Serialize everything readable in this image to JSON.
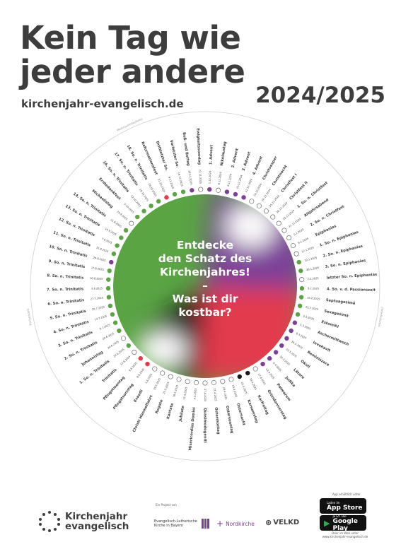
{
  "header": {
    "title_line1": "Kein Tag wie",
    "title_line2": "jeder andere",
    "url": "kirchenjahr-evangelisch.de",
    "year": "2024/2025"
  },
  "center": {
    "line1": "Entdecke",
    "line2": "den Schatz des",
    "line3": "Kirchenjahres!",
    "dash": "–",
    "line4": "Was ist dir",
    "line5": "kostbar?"
  },
  "season_labels": [
    {
      "text": "Weihnachtsfestkreis"
    },
    {
      "text": "Osterfestkreis"
    },
    {
      "text": "Trinitatiszeit"
    }
  ],
  "colors": {
    "purple": "#7b3f98",
    "green": "#5aa444",
    "white": "#ffffff",
    "red": "#e23b4e",
    "black": "#1a1a1a",
    "text": "#3d3d3d"
  },
  "days": [
    {
      "name": "1. Advent",
      "date": "1.12.2024",
      "color": "purple"
    },
    {
      "name": "Nikolaustag",
      "date": "6.12.2024",
      "color": "white"
    },
    {
      "name": "2. Advent",
      "date": "8.12.2024",
      "color": "purple"
    },
    {
      "name": "3. Advent",
      "date": "15.12.2024",
      "color": "purple"
    },
    {
      "name": "4. Advent",
      "date": "22.12.2024",
      "color": "purple"
    },
    {
      "name": "Christvesper",
      "date": "24.12.2024",
      "color": "white"
    },
    {
      "name": "Christnacht",
      "date": "24.12.2024",
      "color": "white"
    },
    {
      "name": "Christfest I",
      "date": "25.12.2024",
      "color": "white"
    },
    {
      "name": "Christfest II",
      "date": "26.12.2024",
      "color": "white"
    },
    {
      "name": "1. So. n. Christfest",
      "date": "29.12.2024",
      "color": "white"
    },
    {
      "name": "Altjahrsabend",
      "date": "31.12.2024",
      "color": "white"
    },
    {
      "name": "2. So. n. Christfest",
      "date": "5.1.2025",
      "color": "white"
    },
    {
      "name": "Epiphanias",
      "date": "6.1.2025",
      "color": "white"
    },
    {
      "name": "1. So. n. Epiphanias",
      "date": "12.1.2025",
      "color": "white"
    },
    {
      "name": "2. So. n. Epiphanias",
      "date": "19.1.2025",
      "color": "green"
    },
    {
      "name": "3. So. n. Epiphanias",
      "date": "26.1.2025",
      "color": "green"
    },
    {
      "name": "letzter So. n. Epiphanias",
      "date": "2.2.2025",
      "color": "white"
    },
    {
      "name": "4. So. v. d. Passionszeit",
      "date": "9.2.2025",
      "color": "green"
    },
    {
      "name": "Septuagesimä",
      "date": "16.2.2025",
      "color": "green"
    },
    {
      "name": "Sexagesimä",
      "date": "23.2.2025",
      "color": "green"
    },
    {
      "name": "Estomihi",
      "date": "2.3.2025",
      "color": "green"
    },
    {
      "name": "Aschermittwoch",
      "date": "5.3.2025",
      "color": "purple"
    },
    {
      "name": "Invokavit",
      "date": "9.3.2025",
      "color": "purple"
    },
    {
      "name": "Reminiszere",
      "date": "16.3.2025",
      "color": "purple"
    },
    {
      "name": "Okuli",
      "date": "23.3.2025",
      "color": "purple"
    },
    {
      "name": "Lätare",
      "date": "30.3.2025",
      "color": "purple"
    },
    {
      "name": "Judika",
      "date": "6.4.2025",
      "color": "purple"
    },
    {
      "name": "Palmarum",
      "date": "13.4.2025",
      "color": "purple"
    },
    {
      "name": "Gründonnerstag",
      "date": "17.4.2025",
      "color": "white"
    },
    {
      "name": "Karfreitag",
      "date": "18.4.2025",
      "color": "black"
    },
    {
      "name": "Karsamstag",
      "date": "19.4.2025",
      "color": "black"
    },
    {
      "name": "Osternacht",
      "date": "19.4.2025",
      "color": "white"
    },
    {
      "name": "Ostersonntag",
      "date": "20.4.2025",
      "color": "white"
    },
    {
      "name": "Ostermontag",
      "date": "21.4.2025",
      "color": "white"
    },
    {
      "name": "Quasimodogeniti",
      "date": "27.4.2025",
      "color": "white"
    },
    {
      "name": "Misericordias Domini",
      "date": "4.5.2025",
      "color": "white"
    },
    {
      "name": "Jubilate",
      "date": "11.5.2025",
      "color": "white"
    },
    {
      "name": "Kantate",
      "date": "18.5.2025",
      "color": "white"
    },
    {
      "name": "Rogate",
      "date": "25.5.2025",
      "color": "white"
    },
    {
      "name": "Christi Himmelfahrt",
      "date": "29.5.2025",
      "color": "white"
    },
    {
      "name": "Exaudi",
      "date": "1.6.2025",
      "color": "white"
    },
    {
      "name": "Pfingstsonntag",
      "date": "8.6.2025",
      "color": "red"
    },
    {
      "name": "Pfingstmontag",
      "date": "9.6.2025",
      "color": "red"
    },
    {
      "name": "Trinitatis",
      "date": "15.6.2025",
      "color": "white"
    },
    {
      "name": "1. So. n. Trinitatis",
      "date": "22.6.2025",
      "color": "green"
    },
    {
      "name": "Johannistag",
      "date": "24.6.2025",
      "color": "white"
    },
    {
      "name": "2. So. n. Trinitatis",
      "date": "29.6.2025",
      "color": "green"
    },
    {
      "name": "3. So. n. Trinitatis",
      "date": "6.7.2025",
      "color": "green"
    },
    {
      "name": "4. So. n. Trinitatis",
      "date": "13.7.2025",
      "color": "green"
    },
    {
      "name": "5. So. n. Trinitatis",
      "date": "20.7.2025",
      "color": "green"
    },
    {
      "name": "6. So. n. Trinitatis",
      "date": "27.7.2025",
      "color": "green"
    },
    {
      "name": "7. So. n. Trinitatis",
      "date": "3.8.2025",
      "color": "green"
    },
    {
      "name": "8. So. n. Trinitatis",
      "date": "10.8.2025",
      "color": "green"
    },
    {
      "name": "9. So. n. Trinitatis",
      "date": "17.8.2025",
      "color": "green"
    },
    {
      "name": "10. So. n. Trinitatis",
      "date": "24.8.2025",
      "color": "purple"
    },
    {
      "name": "11. So. n. Trinitatis",
      "date": "31.8.2025",
      "color": "green"
    },
    {
      "name": "12. So. n. Trinitatis",
      "date": "7.9.2025",
      "color": "green"
    },
    {
      "name": "13. So. n. Trinitatis",
      "date": "14.9.2025",
      "color": "green"
    },
    {
      "name": "14. So. n. Trinitatis",
      "date": "21.9.2025",
      "color": "green"
    },
    {
      "name": "Michaelistag",
      "date": "29.9.2025",
      "color": "white"
    },
    {
      "name": "Erntedankfest",
      "date": "5.10.2025",
      "color": "green"
    },
    {
      "name": "16. So. n. Trinitatis",
      "date": "12.10.2025",
      "color": "green"
    },
    {
      "name": "17. So. n. Trinitatis",
      "date": "19.10.2025",
      "color": "green"
    },
    {
      "name": "18. So. n. Trinitatis",
      "date": "26.10.2025",
      "color": "green"
    },
    {
      "name": "Reformationsfest",
      "date": "31.10.2025",
      "color": "red"
    },
    {
      "name": "Drittletzter So.",
      "date": "9.11.2025",
      "color": "green"
    },
    {
      "name": "Vorletzter So.",
      "date": "16.11.2025",
      "color": "green"
    },
    {
      "name": "Buß- und Bettag",
      "date": "19.11.2025",
      "color": "purple"
    },
    {
      "name": "Ewigkeitssonntag",
      "date": "23.11.2025",
      "color": "white"
    }
  ],
  "footer": {
    "logo_line1": "Kirchenjahr",
    "logo_line2": "evangelisch",
    "project_label": "Ein Projekt von",
    "partner1": "Evangelisch-Lutherische Kirche in Bayern",
    "partner2": "Nordkirche",
    "partner3": "VELKD",
    "app_label": "App erhältlich unter",
    "appstore_small": "Laden im",
    "appstore_big": "App Store",
    "googleplay_small": "JETZT BEI",
    "googleplay_big": "Google Play",
    "web_label": "Oder im Web unter",
    "web_url": "www.kirchenjahr-evangelisch.de"
  }
}
